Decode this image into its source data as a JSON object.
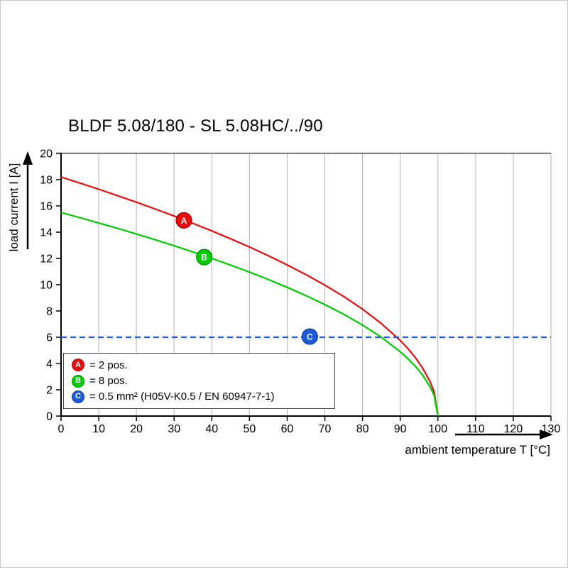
{
  "colors": {
    "series_a_red": "#e80c0c",
    "series_b_green": "#00cc00",
    "series_c_blue": "#1e5bd7",
    "grid": "#b3b3b3",
    "axis": "#000000",
    "background": "#ffffff"
  },
  "chart_data": {
    "type": "line",
    "title": "BLDF 5.08/180 - SL 5.08HC/../90",
    "xlabel": "ambient temperature T [°C]",
    "ylabel": "load current I [A]",
    "xlim": [
      0,
      130
    ],
    "ylim": [
      0,
      20
    ],
    "xticks": [
      0,
      10,
      20,
      30,
      40,
      50,
      60,
      70,
      80,
      90,
      100,
      110,
      120,
      130
    ],
    "yticks": [
      0,
      2,
      4,
      6,
      8,
      10,
      12,
      14,
      16,
      18,
      20
    ],
    "grid": "vertical",
    "grid_color": "#b3b3b3",
    "legend_position": "bottom-left-inside",
    "series": [
      {
        "name": "A",
        "label": "= 2 pos.",
        "color": "#e80c0c",
        "edge": "#9b0000",
        "dashed": false,
        "marker": {
          "x": 32.6,
          "y": 14.9
        },
        "points": [
          [
            0,
            18.2
          ],
          [
            5,
            17.74
          ],
          [
            10,
            17.27
          ],
          [
            15,
            16.78
          ],
          [
            20,
            16.28
          ],
          [
            25,
            15.76
          ],
          [
            30,
            15.23
          ],
          [
            35,
            14.67
          ],
          [
            40,
            14.1
          ],
          [
            45,
            13.5
          ],
          [
            50,
            12.87
          ],
          [
            55,
            12.21
          ],
          [
            60,
            11.51
          ],
          [
            65,
            10.77
          ],
          [
            70,
            9.97
          ],
          [
            75,
            9.1
          ],
          [
            80,
            8.14
          ],
          [
            85,
            7.04
          ],
          [
            90,
            5.76
          ],
          [
            92,
            5.15
          ],
          [
            94,
            4.46
          ],
          [
            96,
            3.64
          ],
          [
            98,
            2.57
          ],
          [
            99,
            1.82
          ],
          [
            100,
            0
          ]
        ]
      },
      {
        "name": "B",
        "label": "= 8 pos.",
        "color": "#00cc00",
        "edge": "#008a00",
        "dashed": false,
        "marker": {
          "x": 38,
          "y": 12.1
        },
        "points": [
          [
            0,
            15.5
          ],
          [
            5,
            15.11
          ],
          [
            10,
            14.7
          ],
          [
            15,
            14.29
          ],
          [
            20,
            13.86
          ],
          [
            25,
            13.42
          ],
          [
            30,
            12.97
          ],
          [
            35,
            12.49
          ],
          [
            40,
            12.0
          ],
          [
            45,
            11.5
          ],
          [
            50,
            10.96
          ],
          [
            55,
            10.4
          ],
          [
            60,
            9.8
          ],
          [
            65,
            9.17
          ],
          [
            70,
            8.49
          ],
          [
            75,
            7.75
          ],
          [
            80,
            6.93
          ],
          [
            85,
            6.0
          ],
          [
            90,
            4.9
          ],
          [
            92,
            4.38
          ],
          [
            94,
            3.8
          ],
          [
            96,
            3.1
          ],
          [
            98,
            2.19
          ],
          [
            99,
            1.55
          ],
          [
            100,
            0
          ]
        ]
      },
      {
        "name": "C",
        "label": "= 0.5 mm² (H05V-K0.5 / EN 60947-7-1)",
        "color": "#1e5bd7",
        "edge": "#0c3a9e",
        "dashed": true,
        "marker": {
          "x": 66,
          "y": 6.05
        },
        "points": [
          [
            0,
            6
          ],
          [
            130,
            6
          ]
        ]
      }
    ]
  }
}
